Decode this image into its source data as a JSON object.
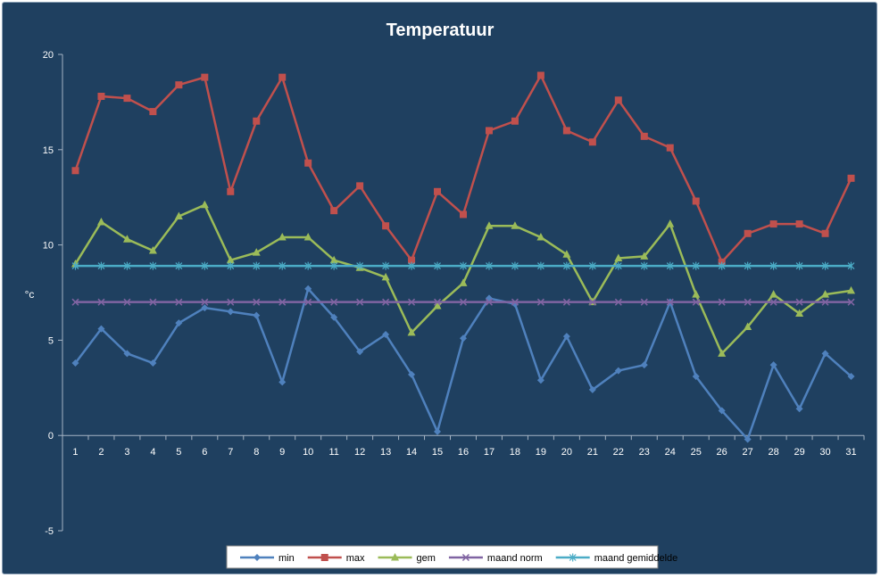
{
  "chart_data": {
    "type": "line",
    "title": "Temperatuur",
    "xlabel": "",
    "ylabel": "°c",
    "ylim": [
      -5,
      20
    ],
    "yticks": [
      -5,
      0,
      5,
      10,
      15,
      20
    ],
    "grid": false,
    "legend_position": "bottom",
    "x": [
      1,
      2,
      3,
      4,
      5,
      6,
      7,
      8,
      9,
      10,
      11,
      12,
      13,
      14,
      15,
      16,
      17,
      18,
      19,
      20,
      21,
      22,
      23,
      24,
      25,
      26,
      27,
      28,
      29,
      30,
      31
    ],
    "series": [
      {
        "name": "min",
        "color": "#4f81bd",
        "marker": "diamond",
        "values": [
          3.8,
          5.6,
          4.3,
          3.8,
          5.9,
          6.7,
          6.5,
          6.3,
          2.8,
          7.7,
          6.2,
          4.4,
          5.3,
          3.2,
          0.2,
          5.1,
          7.2,
          6.9,
          2.9,
          5.2,
          2.4,
          3.4,
          3.7,
          7.0,
          3.1,
          1.3,
          -0.2,
          3.7,
          1.4,
          4.3,
          3.1
        ]
      },
      {
        "name": "max",
        "color": "#c0504d",
        "marker": "square",
        "values": [
          13.9,
          17.8,
          17.7,
          17.0,
          18.4,
          18.8,
          12.8,
          16.5,
          18.8,
          14.3,
          11.8,
          13.1,
          11.0,
          9.2,
          12.8,
          11.6,
          16.0,
          16.5,
          18.9,
          16.0,
          15.4,
          17.6,
          15.7,
          15.1,
          12.3,
          9.1,
          10.6,
          11.1,
          11.1,
          10.6,
          13.5
        ]
      },
      {
        "name": "gem",
        "color": "#9bbb59",
        "marker": "triangle",
        "values": [
          9.0,
          11.2,
          10.3,
          9.7,
          11.5,
          12.1,
          9.2,
          9.6,
          10.4,
          10.4,
          9.2,
          8.8,
          8.3,
          5.4,
          6.8,
          8.0,
          11.0,
          11.0,
          10.4,
          9.5,
          7.0,
          9.3,
          9.4,
          11.1,
          7.4,
          4.3,
          5.7,
          7.4,
          6.4,
          7.4,
          7.6
        ]
      },
      {
        "name": "maand norm",
        "color": "#8064a2",
        "marker": "x",
        "values": [
          7,
          7,
          7,
          7,
          7,
          7,
          7,
          7,
          7,
          7,
          7,
          7,
          7,
          7,
          7,
          7,
          7,
          7,
          7,
          7,
          7,
          7,
          7,
          7,
          7,
          7,
          7,
          7,
          7,
          7,
          7
        ]
      },
      {
        "name": "maand gemiddelde",
        "color": "#4bacc6",
        "marker": "star",
        "values": [
          8.9,
          8.9,
          8.9,
          8.9,
          8.9,
          8.9,
          8.9,
          8.9,
          8.9,
          8.9,
          8.9,
          8.9,
          8.9,
          8.9,
          8.9,
          8.9,
          8.9,
          8.9,
          8.9,
          8.9,
          8.9,
          8.9,
          8.9,
          8.9,
          8.9,
          8.9,
          8.9,
          8.9,
          8.9,
          8.9,
          8.9
        ]
      }
    ]
  }
}
